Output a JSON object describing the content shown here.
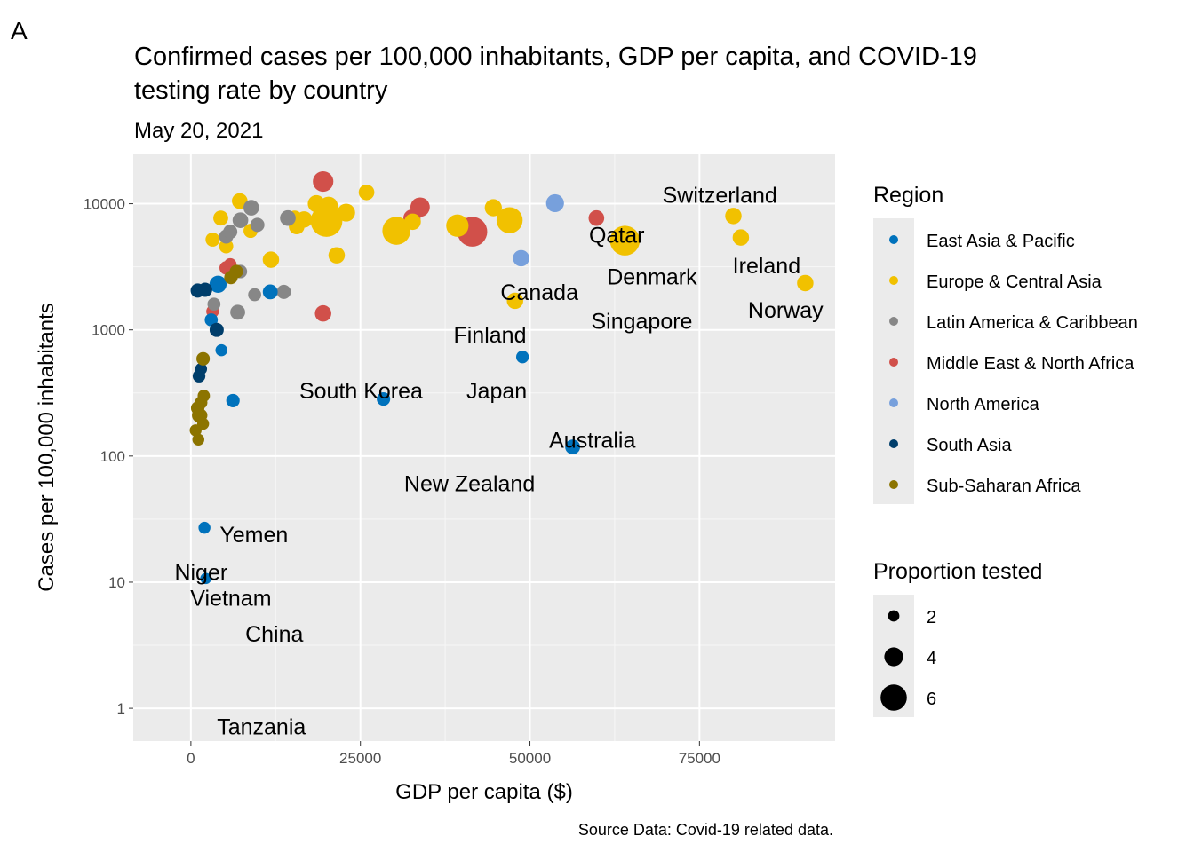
{
  "panel_tag": "A",
  "chart_data": {
    "type": "scatter",
    "title": "Confirmed cases per 100,000 inhabitants, GDP per capita, and COVID-19",
    "title_line2": "testing rate by country",
    "subtitle": "May 20, 2021",
    "xlabel": "GDP per capita ($)",
    "ylabel": "Cases per 100,000 inhabitants",
    "caption": "Source Data: Covid-19 related data.",
    "x_scale": "linear",
    "y_scale": "log10",
    "xlim": [
      -8500,
      95000
    ],
    "ylim": [
      0.55,
      25000
    ],
    "x_ticks": [
      0,
      25000,
      50000,
      75000
    ],
    "x_tick_labels": [
      "0",
      "25000",
      "50000",
      "75000"
    ],
    "y_ticks": [
      1,
      10,
      100,
      1000,
      10000
    ],
    "y_tick_labels": [
      "1",
      "10",
      "100",
      "1000",
      "10000"
    ],
    "grid": true,
    "background": "#ebebeb",
    "legend_position": "right",
    "legend_region_title": "Region",
    "legend_size_title": "Proportion tested",
    "size_legend_values": [
      2,
      4,
      6
    ],
    "size_legend_labels": [
      "2",
      "4",
      "6"
    ],
    "regions": [
      {
        "name": "East Asia & Pacific",
        "color": "#0072bc"
      },
      {
        "name": "Europe & Central Asia",
        "color": "#f1c100"
      },
      {
        "name": "Latin America & Caribbean",
        "color": "#878787"
      },
      {
        "name": "Middle East & North Africa",
        "color": "#d1504a"
      },
      {
        "name": "North America",
        "color": "#77a0dc"
      },
      {
        "name": "South Asia",
        "color": "#003e6b"
      },
      {
        "name": "Sub-Saharan Africa",
        "color": "#8c7400"
      }
    ],
    "points": [
      {
        "x": 19500,
        "y": 15000,
        "region": 3,
        "size": 3.5
      },
      {
        "x": 33800,
        "y": 9400,
        "region": 3,
        "size": 3.2
      },
      {
        "x": 32600,
        "y": 7700,
        "region": 3,
        "size": 2.6
      },
      {
        "x": 41500,
        "y": 6000,
        "region": 3,
        "size": 6.0
      },
      {
        "x": 59800,
        "y": 7700,
        "region": 3,
        "size": 2.2
      },
      {
        "x": 19500,
        "y": 1350,
        "region": 3,
        "size": 2.4
      },
      {
        "x": 5200,
        "y": 3100,
        "region": 3,
        "size": 1.6
      },
      {
        "x": 3200,
        "y": 1400,
        "region": 3,
        "size": 1.4
      },
      {
        "x": 5800,
        "y": 3300,
        "region": 3,
        "size": 1.4
      },
      {
        "x": 53700,
        "y": 10100,
        "region": 4,
        "size": 2.8
      },
      {
        "x": 48700,
        "y": 3700,
        "region": 4,
        "size": 2.4
      },
      {
        "x": 7200,
        "y": 10500,
        "region": 1,
        "size": 2.2
      },
      {
        "x": 4400,
        "y": 7700,
        "region": 1,
        "size": 2.0
      },
      {
        "x": 3200,
        "y": 5200,
        "region": 1,
        "size": 1.8
      },
      {
        "x": 5200,
        "y": 4600,
        "region": 1,
        "size": 1.8
      },
      {
        "x": 8800,
        "y": 6100,
        "region": 1,
        "size": 1.8
      },
      {
        "x": 11800,
        "y": 3600,
        "region": 1,
        "size": 2.4
      },
      {
        "x": 15300,
        "y": 7700,
        "region": 1,
        "size": 2.0
      },
      {
        "x": 15600,
        "y": 6600,
        "region": 1,
        "size": 2.2
      },
      {
        "x": 16700,
        "y": 7500,
        "region": 1,
        "size": 2.4
      },
      {
        "x": 18500,
        "y": 10000,
        "region": 1,
        "size": 2.6
      },
      {
        "x": 19500,
        "y": 8800,
        "region": 1,
        "size": 3.0
      },
      {
        "x": 20000,
        "y": 7300,
        "region": 1,
        "size": 6.5
      },
      {
        "x": 20300,
        "y": 9600,
        "region": 1,
        "size": 3.0
      },
      {
        "x": 21500,
        "y": 3900,
        "region": 1,
        "size": 2.4
      },
      {
        "x": 22900,
        "y": 8500,
        "region": 1,
        "size": 2.8
      },
      {
        "x": 25900,
        "y": 12300,
        "region": 1,
        "size": 2.2
      },
      {
        "x": 30300,
        "y": 6100,
        "region": 1,
        "size": 5.5
      },
      {
        "x": 32700,
        "y": 7200,
        "region": 1,
        "size": 2.4
      },
      {
        "x": 39300,
        "y": 6700,
        "region": 1,
        "size": 4.0
      },
      {
        "x": 44600,
        "y": 9300,
        "region": 1,
        "size": 2.6
      },
      {
        "x": 47000,
        "y": 7400,
        "region": 1,
        "size": 5.0
      },
      {
        "x": 47800,
        "y": 1700,
        "region": 1,
        "size": 2.4
      },
      {
        "x": 64000,
        "y": 5100,
        "region": 1,
        "size": 6.0
      },
      {
        "x": 80000,
        "y": 8000,
        "region": 1,
        "size": 2.4
      },
      {
        "x": 81100,
        "y": 5400,
        "region": 1,
        "size": 2.4
      },
      {
        "x": 90600,
        "y": 2350,
        "region": 1,
        "size": 2.4
      },
      {
        "x": 5200,
        "y": 5500,
        "region": 2,
        "size": 1.8
      },
      {
        "x": 5800,
        "y": 6000,
        "region": 2,
        "size": 1.8
      },
      {
        "x": 7300,
        "y": 7400,
        "region": 2,
        "size": 2.2
      },
      {
        "x": 8900,
        "y": 9300,
        "region": 2,
        "size": 2.2
      },
      {
        "x": 9800,
        "y": 6800,
        "region": 2,
        "size": 1.8
      },
      {
        "x": 14300,
        "y": 7700,
        "region": 2,
        "size": 2.2
      },
      {
        "x": 6900,
        "y": 1380,
        "region": 2,
        "size": 2.0
      },
      {
        "x": 9400,
        "y": 1900,
        "region": 2,
        "size": 1.5
      },
      {
        "x": 13700,
        "y": 2000,
        "region": 2,
        "size": 1.8
      },
      {
        "x": 3400,
        "y": 1600,
        "region": 2,
        "size": 1.5
      },
      {
        "x": 7300,
        "y": 2900,
        "region": 2,
        "size": 1.6
      },
      {
        "x": 4000,
        "y": 2300,
        "region": 0,
        "size": 2.6
      },
      {
        "x": 11700,
        "y": 2000,
        "region": 0,
        "size": 2.0
      },
      {
        "x": 3000,
        "y": 1200,
        "region": 0,
        "size": 1.5
      },
      {
        "x": 4500,
        "y": 690,
        "region": 0,
        "size": 1.2
      },
      {
        "x": 6200,
        "y": 275,
        "region": 0,
        "size": 1.6
      },
      {
        "x": 28400,
        "y": 283,
        "region": 0,
        "size": 1.6
      },
      {
        "x": 48900,
        "y": 610,
        "region": 0,
        "size": 1.4
      },
      {
        "x": 56300,
        "y": 118,
        "region": 0,
        "size": 2.0
      },
      {
        "x": 2000,
        "y": 27,
        "region": 0,
        "size": 1.2
      },
      {
        "x": 2200,
        "y": 10.7,
        "region": 0,
        "size": 1.0
      },
      {
        "x": 1000,
        "y": 2050,
        "region": 5,
        "size": 1.8
      },
      {
        "x": 2100,
        "y": 2080,
        "region": 5,
        "size": 1.8
      },
      {
        "x": 3800,
        "y": 1000,
        "region": 5,
        "size": 1.8
      },
      {
        "x": 1500,
        "y": 490,
        "region": 5,
        "size": 1.2
      },
      {
        "x": 1200,
        "y": 430,
        "region": 5,
        "size": 1.4
      },
      {
        "x": 1800,
        "y": 590,
        "region": 6,
        "size": 1.6
      },
      {
        "x": 1900,
        "y": 300,
        "region": 6,
        "size": 1.3
      },
      {
        "x": 1000,
        "y": 240,
        "region": 6,
        "size": 1.6
      },
      {
        "x": 1200,
        "y": 210,
        "region": 6,
        "size": 1.8
      },
      {
        "x": 1500,
        "y": 265,
        "region": 6,
        "size": 1.4
      },
      {
        "x": 1800,
        "y": 180,
        "region": 6,
        "size": 1.2
      },
      {
        "x": 700,
        "y": 160,
        "region": 6,
        "size": 1.2
      },
      {
        "x": 1100,
        "y": 135,
        "region": 6,
        "size": 1.2
      },
      {
        "x": 1500,
        "y": 210,
        "region": 6,
        "size": 1.4
      },
      {
        "x": 6700,
        "y": 2900,
        "region": 6,
        "size": 1.6
      },
      {
        "x": 5900,
        "y": 2600,
        "region": 6,
        "size": 1.6
      }
    ],
    "annotations": [
      {
        "text": "Switzerland",
        "x": 78000,
        "y": 11800
      },
      {
        "text": "Qatar",
        "x": 62800,
        "y": 5700
      },
      {
        "text": "Denmark",
        "x": 68000,
        "y": 2650
      },
      {
        "text": "Ireland",
        "x": 84900,
        "y": 3250
      },
      {
        "text": "Canada",
        "x": 51400,
        "y": 2000
      },
      {
        "text": "Norway",
        "x": 87700,
        "y": 1450
      },
      {
        "text": "Singapore",
        "x": 66500,
        "y": 1180
      },
      {
        "text": "Finland",
        "x": 44100,
        "y": 920
      },
      {
        "text": "South Korea",
        "x": 25100,
        "y": 330
      },
      {
        "text": "Japan",
        "x": 45100,
        "y": 330
      },
      {
        "text": "Australia",
        "x": 59200,
        "y": 135
      },
      {
        "text": "New Zealand",
        "x": 41100,
        "y": 61
      },
      {
        "text": "Yemen",
        "x": 9300,
        "y": 24
      },
      {
        "text": "Niger",
        "x": 1500,
        "y": 12
      },
      {
        "text": "Vietnam",
        "x": 5900,
        "y": 7.5
      },
      {
        "text": "China",
        "x": 12300,
        "y": 3.9
      },
      {
        "text": "Tanzania",
        "x": 10400,
        "y": 0.72
      }
    ]
  }
}
